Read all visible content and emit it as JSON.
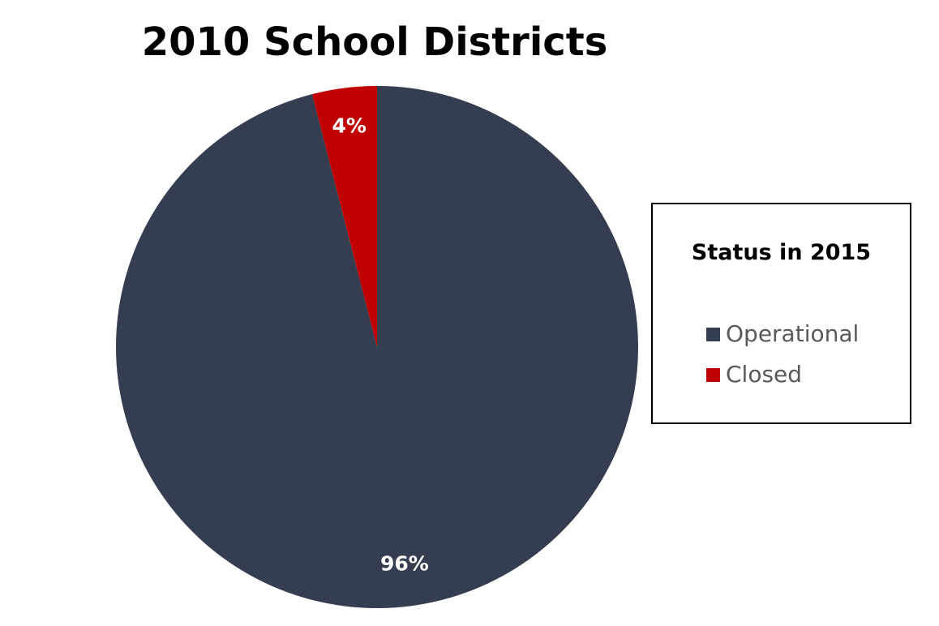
{
  "chart_data": {
    "type": "pie",
    "title": "2010 School Districts",
    "legend_title": "Status in 2015",
    "legend_position": "right",
    "slices": [
      {
        "name": "Operational",
        "value": 96,
        "label": "96%",
        "color": "#343e50"
      },
      {
        "name": "Closed",
        "value": 4,
        "label": "4%",
        "color": "#c00000"
      }
    ],
    "start_angle_deg": 0,
    "direction": "counterclockwise"
  }
}
